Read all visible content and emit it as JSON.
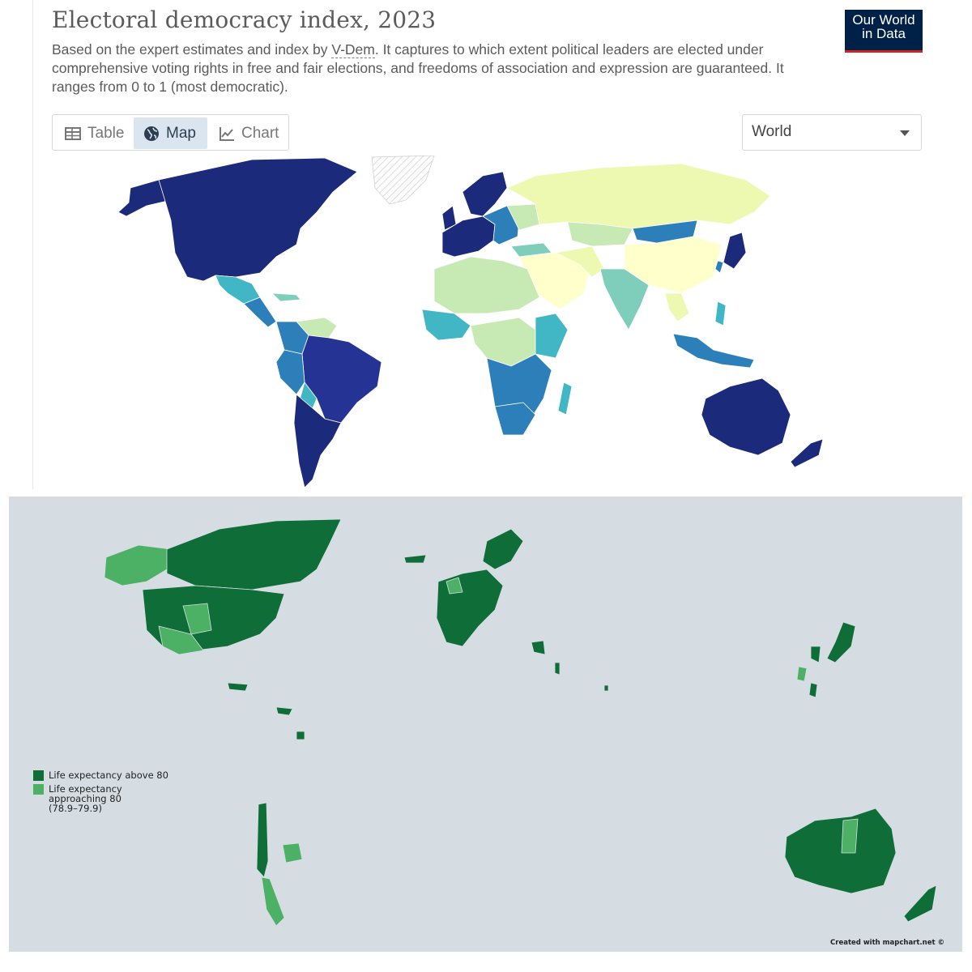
{
  "top_chart": {
    "title": "Electoral democracy index, 2023",
    "subtitle_before_link": "Based on the expert estimates and index by ",
    "subtitle_link": "V-Dem",
    "subtitle_after_link": ". It captures to which extent political leaders are elected under comprehensive voting rights in free and fair elections, and freedoms of association and expression are guaranteed. It ranges from 0 to 1 (most democratic).",
    "logo_line1": "Our World",
    "logo_line2": "in Data",
    "tabs": [
      {
        "label": "Table",
        "icon": "table-icon",
        "selected": false
      },
      {
        "label": "Map",
        "icon": "globe-icon",
        "selected": true
      },
      {
        "label": "Chart",
        "icon": "line-chart-icon",
        "selected": false
      }
    ],
    "region_selected": "World",
    "colors": {
      "most_democratic": "#1b2a7a",
      "high": "#253494",
      "upper_mid": "#2c7fb8",
      "mid": "#41b6c4",
      "lower_mid": "#7fcdbb",
      "low": "#c7e9b4",
      "lowest": "#ffffcc",
      "no_data": "#e8e8e8"
    }
  },
  "bottom_map": {
    "legend": [
      {
        "label": "Life expectancy above 80",
        "color": "#0f6e37"
      },
      {
        "label": "Life expectancy approaching 80 (78.9–79.9)",
        "color": "#4cb065"
      }
    ],
    "legend_label_approaching_line1": "Life expectancy",
    "legend_label_approaching_line2": "approaching 80",
    "legend_label_approaching_line3": "(78.9–79.9)",
    "credit": "Created with mapchart.net ©",
    "colors": {
      "ocean": "#d5dde2",
      "above_80": "#0f6e37",
      "approaching_80": "#4cb065"
    }
  }
}
